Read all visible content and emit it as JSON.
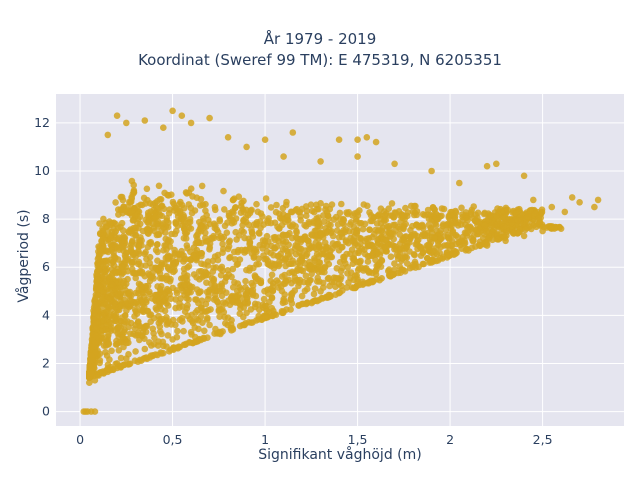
{
  "chart_data": {
    "type": "scatter",
    "title_lines": [
      "År 1979 - 2019",
      "Koordinat (Sweref 99 TM): E 475319, N 6205351"
    ],
    "xlabel": "Signifikant våghöjd (m)",
    "ylabel": "Vågperiod (s)",
    "xlim": [
      -0.13,
      2.94
    ],
    "ylim": [
      -0.6,
      13.2
    ],
    "xticks": [
      0,
      0.5,
      1,
      1.5,
      2,
      2.5
    ],
    "xtick_labels": [
      "0",
      "0,5",
      "1",
      "1,5",
      "2",
      "2,5"
    ],
    "yticks": [
      0,
      2,
      4,
      6,
      8,
      10,
      12
    ],
    "ytick_labels": [
      "0",
      "2",
      "4",
      "6",
      "8",
      "10",
      "12"
    ],
    "grid": true,
    "marker_color": "#d4a420",
    "plot_bg": "#e5e5ef",
    "series_description": "Dense cloud of hourly observations; lower edge rises from about 1.3 s at 0.05 m to about 7.5 s at 2.6 m; upper edge about 8 to 12.5 s.",
    "points": [
      [
        0.02,
        0
      ],
      [
        0.03,
        0
      ],
      [
        0.04,
        0
      ],
      [
        0.06,
        0
      ],
      [
        0.08,
        0
      ],
      [
        0.05,
        1.2
      ],
      [
        0.05,
        1.4
      ],
      [
        0.06,
        1.6
      ],
      [
        0.08,
        1.3
      ],
      [
        0.1,
        1.5
      ],
      [
        0.12,
        1.6
      ],
      [
        0.15,
        1.8
      ],
      [
        0.2,
        2.0
      ],
      [
        0.25,
        2.2
      ],
      [
        0.3,
        2.5
      ],
      [
        0.35,
        2.6
      ],
      [
        0.4,
        2.8
      ],
      [
        0.5,
        3.0
      ],
      [
        0.6,
        3.3
      ],
      [
        0.7,
        3.6
      ],
      [
        0.8,
        3.9
      ],
      [
        0.9,
        4.1
      ],
      [
        1.0,
        4.4
      ],
      [
        1.1,
        4.6
      ],
      [
        1.2,
        4.8
      ],
      [
        1.3,
        5.0
      ],
      [
        1.4,
        5.3
      ],
      [
        1.5,
        5.5
      ],
      [
        1.6,
        5.7
      ],
      [
        1.7,
        5.9
      ],
      [
        1.8,
        6.1
      ],
      [
        1.9,
        6.3
      ],
      [
        2.0,
        6.5
      ],
      [
        2.1,
        6.7
      ],
      [
        2.2,
        6.9
      ],
      [
        2.3,
        7.1
      ],
      [
        2.4,
        7.3
      ],
      [
        2.5,
        7.5
      ],
      [
        2.6,
        7.6
      ],
      [
        2.45,
        8.8
      ],
      [
        2.55,
        8.5
      ],
      [
        2.62,
        8.3
      ],
      [
        2.7,
        8.7
      ],
      [
        2.78,
        8.5
      ],
      [
        2.8,
        8.8
      ],
      [
        2.66,
        8.9
      ],
      [
        0.15,
        11.5
      ],
      [
        0.2,
        12.3
      ],
      [
        0.25,
        12.0
      ],
      [
        0.35,
        12.1
      ],
      [
        0.45,
        11.8
      ],
      [
        0.5,
        12.5
      ],
      [
        0.55,
        12.3
      ],
      [
        0.6,
        12.0
      ],
      [
        0.7,
        12.2
      ],
      [
        0.8,
        11.4
      ],
      [
        0.9,
        11.0
      ],
      [
        1.0,
        11.3
      ],
      [
        1.15,
        11.6
      ],
      [
        1.4,
        11.3
      ],
      [
        1.5,
        11.3
      ],
      [
        1.55,
        11.4
      ],
      [
        1.6,
        11.2
      ],
      [
        1.1,
        10.6
      ],
      [
        1.3,
        10.4
      ],
      [
        1.5,
        10.6
      ],
      [
        1.7,
        10.3
      ],
      [
        1.9,
        10.0
      ],
      [
        2.2,
        10.2
      ],
      [
        2.25,
        10.3
      ],
      [
        2.4,
        9.8
      ],
      [
        2.05,
        9.5
      ]
    ]
  }
}
